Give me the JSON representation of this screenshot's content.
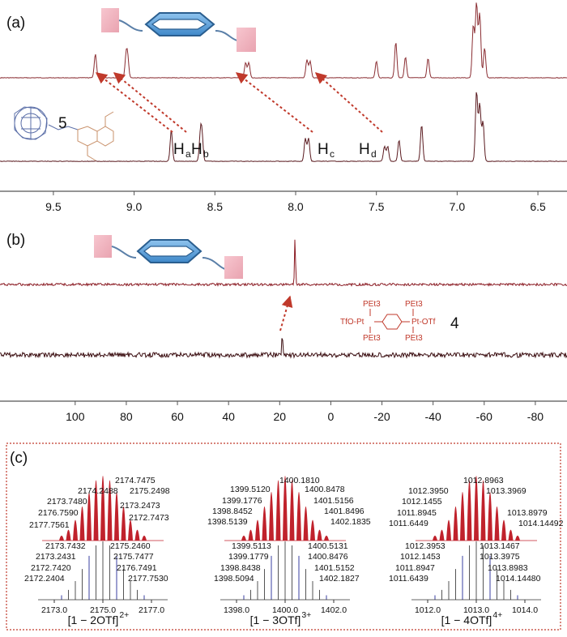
{
  "panels": {
    "a": {
      "label": "(a)",
      "compound_label": "5",
      "proton_labels": [
        {
          "main": "H",
          "sub": "a"
        },
        {
          "main": "H",
          "sub": "b"
        },
        {
          "main": "H",
          "sub": "c"
        },
        {
          "main": "H",
          "sub": "d"
        }
      ]
    },
    "b": {
      "label": "(b)",
      "compound_label": "4",
      "structure_text": [
        "PEt3",
        "PEt3",
        "TfO-Pt",
        "Pt-OTf",
        "PEt3",
        "PEt3"
      ]
    },
    "c": {
      "label": "(c)",
      "spectra": [
        {
          "ion_label": "[1 − 2OTf]",
          "charge": "2+",
          "experimental_peaks": [
            "2174.7475",
            "2174.2488",
            "2175.2498",
            "2173.7480",
            "2173.2473",
            "2176.7590",
            "2172.7473",
            "2177.7561"
          ],
          "calculated_peaks": [
            "2173.7432",
            "2175.2460",
            "2173.2431",
            "2175.7477",
            "2172.7420",
            "2176.7491",
            "2172.2404",
            "2177.7530"
          ],
          "axis_ticks": [
            "2173.0",
            "2175.0",
            "2177.0"
          ]
        },
        {
          "ion_label": "[1 − 3OTf]",
          "charge": "3+",
          "experimental_peaks": [
            "1400.1810",
            "1399.5120",
            "1400.8478",
            "1399.1776",
            "1401.5156",
            "1398.8452",
            "1401.8496",
            "1398.5139",
            "1402.1835"
          ],
          "calculated_peaks": [
            "1399.5113",
            "1400.5131",
            "1399.1779",
            "1400.8476",
            "1398.8438",
            "1401.5152",
            "1398.5094",
            "1402.1827"
          ],
          "axis_ticks": [
            "1398.0",
            "1400.0",
            "1402.0"
          ]
        },
        {
          "ion_label": "[1 − 4OTf]",
          "charge": "4+",
          "experimental_peaks": [
            "1012.8963",
            "1012.3950",
            "1013.3969",
            "1012.1455",
            "1011.8945",
            "1013.8979",
            "1011.6449",
            "1014.14492"
          ],
          "calculated_peaks": [
            "1012.3953",
            "1013.1467",
            "1012.1453",
            "1013.3975",
            "1011.8947",
            "1013.8983",
            "1011.6439",
            "1014.14480"
          ],
          "axis_ticks": [
            "1012.0",
            "1013.0",
            "1014.0"
          ]
        }
      ]
    }
  },
  "chart_data": [
    {
      "type": "line",
      "panel": "a",
      "xlabel": "",
      "ylabel": "",
      "x_ticks": [
        9.5,
        9.0,
        8.5,
        8.0,
        7.5,
        7.0,
        6.5
      ],
      "xlim": [
        9.65,
        6.37
      ],
      "reversed_x": true,
      "series": [
        {
          "peaks": [
            {
              "x": 9.24,
              "h": 0.32
            },
            {
              "x": 9.05,
              "h": 0.27
            },
            {
              "x": 9.04,
              "h": 0.25
            },
            {
              "x": 8.31,
              "h": 0.2
            },
            {
              "x": 8.29,
              "h": 0.2
            },
            {
              "x": 7.93,
              "h": 0.24
            },
            {
              "x": 7.91,
              "h": 0.22
            },
            {
              "x": 7.5,
              "h": 0.22
            },
            {
              "x": 7.38,
              "h": 0.48
            },
            {
              "x": 7.32,
              "h": 0.28
            },
            {
              "x": 7.18,
              "h": 0.26
            },
            {
              "x": 6.9,
              "h": 0.7
            },
            {
              "x": 6.88,
              "h": 1.0
            },
            {
              "x": 6.86,
              "h": 0.86
            },
            {
              "x": 6.83,
              "h": 0.4
            }
          ]
        },
        {
          "peaks": [
            {
              "x": 8.77,
              "h": 0.35
            },
            {
              "x": 8.59,
              "h": 0.28
            },
            {
              "x": 8.58,
              "h": 0.28
            },
            {
              "x": 7.94,
              "h": 0.26
            },
            {
              "x": 7.92,
              "h": 0.26
            },
            {
              "x": 7.45,
              "h": 0.17
            },
            {
              "x": 7.43,
              "h": 0.17
            },
            {
              "x": 7.36,
              "h": 0.24
            },
            {
              "x": 7.22,
              "h": 0.42
            },
            {
              "x": 6.88,
              "h": 0.8
            },
            {
              "x": 6.86,
              "h": 0.65
            },
            {
              "x": 6.84,
              "h": 0.45
            }
          ]
        }
      ]
    },
    {
      "type": "line",
      "panel": "b",
      "xlabel": "",
      "ylabel": "",
      "x_ticks": [
        100,
        80,
        60,
        40,
        20,
        0,
        -20,
        -40,
        -60,
        -80
      ],
      "xlim": [
        118,
        -87
      ],
      "reversed_x": true,
      "series": [
        {
          "peaks": [
            {
              "x": 14,
              "h": 1.0
            }
          ]
        },
        {
          "peaks": [
            {
              "x": 19,
              "h": 0.6
            }
          ]
        }
      ]
    }
  ]
}
